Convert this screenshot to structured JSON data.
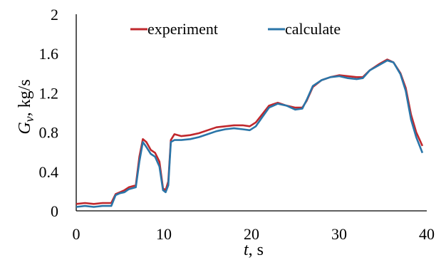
{
  "chart_data": {
    "type": "line",
    "xlabel": {
      "var": "t",
      "unit": ", s"
    },
    "ylabel": {
      "var": "G",
      "sub": "v",
      "unit": ", kg/s"
    },
    "xlim": [
      0,
      40
    ],
    "ylim": [
      0,
      2
    ],
    "x_ticks": [
      "0",
      "10",
      "20",
      "30",
      "40"
    ],
    "y_ticks": [
      "0",
      "0.4",
      "0.8",
      "1.2",
      "1.6",
      "2"
    ],
    "grid": false,
    "legend_position": "top-center",
    "series": [
      {
        "name": "experiment",
        "color": "#c0282d",
        "points": [
          [
            0,
            0.07
          ],
          [
            1,
            0.08
          ],
          [
            2,
            0.07
          ],
          [
            3,
            0.08
          ],
          [
            4,
            0.08
          ],
          [
            4.5,
            0.17
          ],
          [
            5,
            0.19
          ],
          [
            5.5,
            0.21
          ],
          [
            6,
            0.24
          ],
          [
            6.8,
            0.26
          ],
          [
            7.2,
            0.55
          ],
          [
            7.6,
            0.73
          ],
          [
            8,
            0.7
          ],
          [
            8.5,
            0.62
          ],
          [
            9,
            0.59
          ],
          [
            9.5,
            0.5
          ],
          [
            9.9,
            0.23
          ],
          [
            10.2,
            0.21
          ],
          [
            10.5,
            0.3
          ],
          [
            10.8,
            0.72
          ],
          [
            11.2,
            0.78
          ],
          [
            12,
            0.76
          ],
          [
            13,
            0.77
          ],
          [
            14,
            0.79
          ],
          [
            15,
            0.82
          ],
          [
            16,
            0.85
          ],
          [
            17,
            0.86
          ],
          [
            18,
            0.87
          ],
          [
            19,
            0.87
          ],
          [
            19.8,
            0.86
          ],
          [
            20.5,
            0.9
          ],
          [
            21.2,
            0.98
          ],
          [
            22,
            1.07
          ],
          [
            23,
            1.1
          ],
          [
            24,
            1.07
          ],
          [
            25,
            1.05
          ],
          [
            25.8,
            1.05
          ],
          [
            26.3,
            1.12
          ],
          [
            27,
            1.26
          ],
          [
            28,
            1.33
          ],
          [
            29,
            1.36
          ],
          [
            30,
            1.38
          ],
          [
            31,
            1.37
          ],
          [
            32,
            1.36
          ],
          [
            32.7,
            1.36
          ],
          [
            33.5,
            1.43
          ],
          [
            34.5,
            1.49
          ],
          [
            35.5,
            1.54
          ],
          [
            36.2,
            1.51
          ],
          [
            37,
            1.4
          ],
          [
            37.6,
            1.25
          ],
          [
            38.2,
            0.98
          ],
          [
            38.8,
            0.8
          ],
          [
            39.5,
            0.66
          ]
        ]
      },
      {
        "name": "calculate",
        "color": "#2a75a8",
        "points": [
          [
            0,
            0.04
          ],
          [
            1,
            0.05
          ],
          [
            2,
            0.04
          ],
          [
            3,
            0.05
          ],
          [
            4,
            0.05
          ],
          [
            4.5,
            0.16
          ],
          [
            5,
            0.18
          ],
          [
            5.5,
            0.19
          ],
          [
            6,
            0.22
          ],
          [
            6.8,
            0.24
          ],
          [
            7.2,
            0.5
          ],
          [
            7.6,
            0.7
          ],
          [
            8,
            0.65
          ],
          [
            8.5,
            0.58
          ],
          [
            9,
            0.55
          ],
          [
            9.5,
            0.45
          ],
          [
            9.9,
            0.21
          ],
          [
            10.2,
            0.19
          ],
          [
            10.5,
            0.26
          ],
          [
            10.8,
            0.7
          ],
          [
            11.2,
            0.72
          ],
          [
            12,
            0.72
          ],
          [
            13,
            0.73
          ],
          [
            14,
            0.75
          ],
          [
            15,
            0.78
          ],
          [
            16,
            0.81
          ],
          [
            17,
            0.83
          ],
          [
            18,
            0.84
          ],
          [
            19,
            0.83
          ],
          [
            19.8,
            0.82
          ],
          [
            20.5,
            0.86
          ],
          [
            21.2,
            0.95
          ],
          [
            22,
            1.05
          ],
          [
            23,
            1.09
          ],
          [
            24,
            1.07
          ],
          [
            25,
            1.03
          ],
          [
            25.8,
            1.04
          ],
          [
            26.3,
            1.13
          ],
          [
            27,
            1.27
          ],
          [
            28,
            1.33
          ],
          [
            29,
            1.36
          ],
          [
            30,
            1.37
          ],
          [
            31,
            1.35
          ],
          [
            32,
            1.34
          ],
          [
            32.7,
            1.35
          ],
          [
            33.5,
            1.43
          ],
          [
            34.5,
            1.48
          ],
          [
            35.5,
            1.53
          ],
          [
            36.2,
            1.51
          ],
          [
            37,
            1.39
          ],
          [
            37.6,
            1.22
          ],
          [
            38.2,
            0.93
          ],
          [
            38.8,
            0.75
          ],
          [
            39.5,
            0.59
          ]
        ]
      }
    ]
  }
}
